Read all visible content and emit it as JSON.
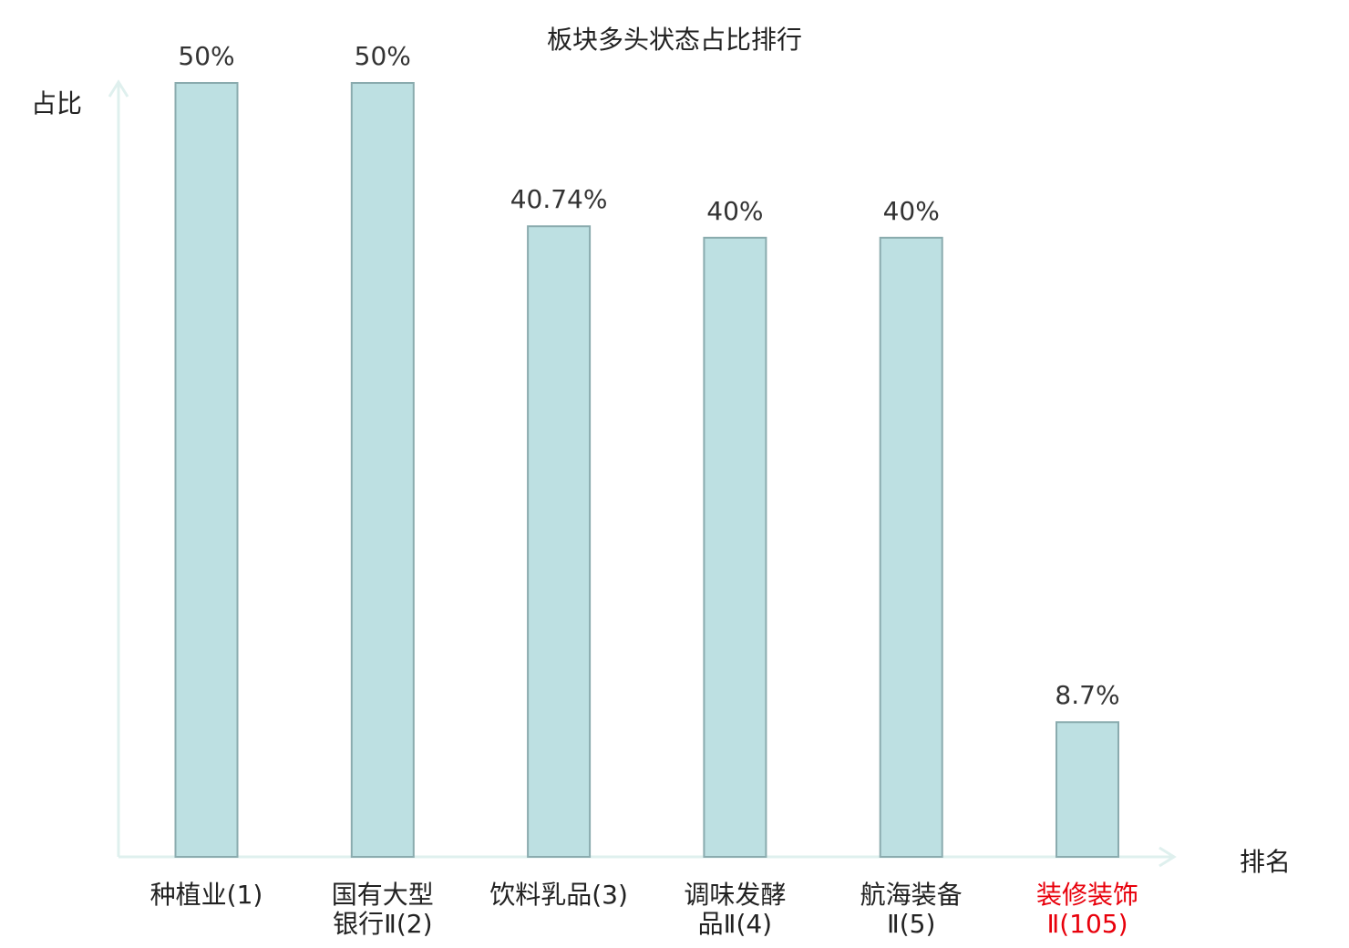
{
  "chart_data": {
    "type": "bar",
    "title": "板块多头状态占比排行",
    "ylabel": "占比",
    "xlabel": "排名",
    "categories": [
      {
        "line1": "种植业(1)",
        "line2": ""
      },
      {
        "line1": "国有大型",
        "line2": "银行Ⅱ(2)"
      },
      {
        "line1": "饮料乳品(3)",
        "line2": ""
      },
      {
        "line1": "调味发酵",
        "line2": "品Ⅱ(4)"
      },
      {
        "line1": "航海装备",
        "line2": "Ⅱ(5)"
      },
      {
        "line1": "装修装饰",
        "line2": "Ⅱ(105)"
      }
    ],
    "values": [
      50,
      50,
      40.74,
      40,
      40,
      8.7
    ],
    "value_labels": [
      "50%",
      "50%",
      "40.74%",
      "40%",
      "40%",
      "8.7%"
    ],
    "highlight_index": 5,
    "ylim": [
      0,
      50
    ],
    "grid": false,
    "colors": {
      "bar_fill": "#bde0e2",
      "bar_stroke": "#8aabae",
      "axis": "#dff0ee",
      "highlight_text": "#e8000b"
    }
  }
}
